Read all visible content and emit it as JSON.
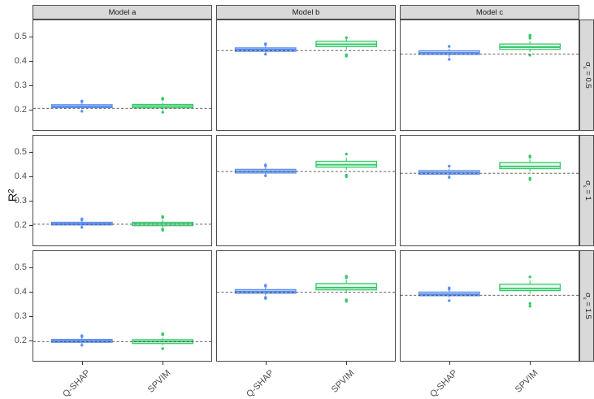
{
  "chart_data": {
    "type": "boxplot",
    "title": "",
    "ylabel": "R²",
    "xlabel": "",
    "y_ticks": [
      0.2,
      0.3,
      0.4,
      0.5
    ],
    "y_domain": [
      0.117,
      0.567
    ],
    "grid": "off",
    "legend": "none",
    "x_categories": [
      "Q-SHAP",
      "SPVIM"
    ],
    "col_facets": [
      "Model a",
      "Model b",
      "Model c"
    ],
    "row_facets": [
      {
        "symbol": "σ",
        "subscript": "ε",
        "rest": " = 0.5"
      },
      {
        "symbol": "σ",
        "subscript": "ε",
        "rest": " = 1"
      },
      {
        "symbol": "σ",
        "subscript": "ε",
        "rest": " = 1.5"
      }
    ],
    "series_colors": {
      "Q-SHAP": {
        "stroke": "#5b8ff0",
        "fill": "#c3daf9"
      },
      "SPVIM": {
        "stroke": "#35c968",
        "fill": "#e9f9ef"
      }
    },
    "dashed_line_color": "#4a4a4a",
    "panel_border_color": "#4d4d4d",
    "strip_bg_color": "#d9d9d9",
    "panels": [
      {
        "row": 0,
        "col": 0,
        "dashed": 0.206,
        "boxes": [
          {
            "method": "Q-SHAP",
            "whisker_low": 0.202,
            "q1": 0.209,
            "median": 0.214,
            "q3": 0.221,
            "whisker_high": 0.227,
            "outliers": [
              0.236,
              0.233,
              0.194
            ]
          },
          {
            "method": "SPVIM",
            "whisker_low": 0.199,
            "q1": 0.208,
            "median": 0.215,
            "q3": 0.222,
            "whisker_high": 0.229,
            "outliers": [
              0.247,
              0.243,
              0.19
            ]
          }
        ]
      },
      {
        "row": 0,
        "col": 1,
        "dashed": 0.443,
        "boxes": [
          {
            "method": "Q-SHAP",
            "whisker_low": 0.433,
            "q1": 0.44,
            "median": 0.447,
            "q3": 0.454,
            "whisker_high": 0.461,
            "outliers": [
              0.471,
              0.467,
              0.428
            ]
          },
          {
            "method": "SPVIM",
            "whisker_low": 0.447,
            "q1": 0.459,
            "median": 0.469,
            "q3": 0.481,
            "whisker_high": 0.491,
            "outliers": [
              0.496,
              0.426,
              0.42
            ]
          }
        ]
      },
      {
        "row": 0,
        "col": 2,
        "dashed": 0.428,
        "boxes": [
          {
            "method": "Q-SHAP",
            "whisker_low": 0.417,
            "q1": 0.427,
            "median": 0.434,
            "q3": 0.442,
            "whisker_high": 0.451,
            "outliers": [
              0.46,
              0.407
            ]
          },
          {
            "method": "SPVIM",
            "whisker_low": 0.437,
            "q1": 0.448,
            "median": 0.457,
            "q3": 0.47,
            "whisker_high": 0.481,
            "outliers": [
              0.506,
              0.5,
              0.494,
              0.424
            ]
          }
        ]
      },
      {
        "row": 1,
        "col": 0,
        "dashed": 0.204,
        "boxes": [
          {
            "method": "Q-SHAP",
            "whisker_low": 0.195,
            "q1": 0.201,
            "median": 0.206,
            "q3": 0.212,
            "whisker_high": 0.218,
            "outliers": [
              0.226,
              0.222,
              0.191
            ]
          },
          {
            "method": "SPVIM",
            "whisker_low": 0.19,
            "q1": 0.198,
            "median": 0.205,
            "q3": 0.212,
            "whisker_high": 0.22,
            "outliers": [
              0.235,
              0.231,
              0.184,
              0.179
            ]
          }
        ]
      },
      {
        "row": 1,
        "col": 1,
        "dashed": 0.42,
        "boxes": [
          {
            "method": "Q-SHAP",
            "whisker_low": 0.407,
            "q1": 0.414,
            "median": 0.421,
            "q3": 0.429,
            "whisker_high": 0.437,
            "outliers": [
              0.447,
              0.443,
              0.403
            ]
          },
          {
            "method": "SPVIM",
            "whisker_low": 0.426,
            "q1": 0.438,
            "median": 0.448,
            "q3": 0.462,
            "whisker_high": 0.476,
            "outliers": [
              0.492,
              0.405,
              0.399
            ]
          }
        ]
      },
      {
        "row": 1,
        "col": 2,
        "dashed": 0.413,
        "boxes": [
          {
            "method": "Q-SHAP",
            "whisker_low": 0.401,
            "q1": 0.409,
            "median": 0.416,
            "q3": 0.424,
            "whisker_high": 0.432,
            "outliers": [
              0.442,
              0.396
            ]
          },
          {
            "method": "SPVIM",
            "whisker_low": 0.42,
            "q1": 0.432,
            "median": 0.441,
            "q3": 0.457,
            "whisker_high": 0.47,
            "outliers": [
              0.484,
              0.479,
              0.392,
              0.387
            ]
          }
        ]
      },
      {
        "row": 2,
        "col": 0,
        "dashed": 0.196,
        "boxes": [
          {
            "method": "Q-SHAP",
            "whisker_low": 0.187,
            "q1": 0.193,
            "median": 0.199,
            "q3": 0.205,
            "whisker_high": 0.211,
            "outliers": [
              0.22,
              0.216,
              0.181
            ]
          },
          {
            "method": "SPVIM",
            "whisker_low": 0.181,
            "q1": 0.188,
            "median": 0.196,
            "q3": 0.204,
            "whisker_high": 0.212,
            "outliers": [
              0.228,
              0.224,
              0.167
            ]
          }
        ]
      },
      {
        "row": 2,
        "col": 1,
        "dashed": 0.398,
        "boxes": [
          {
            "method": "Q-SHAP",
            "whisker_low": 0.386,
            "q1": 0.394,
            "median": 0.401,
            "q3": 0.409,
            "whisker_high": 0.417,
            "outliers": [
              0.427,
              0.423,
              0.377,
              0.373
            ]
          },
          {
            "method": "SPVIM",
            "whisker_low": 0.395,
            "q1": 0.408,
            "median": 0.417,
            "q3": 0.434,
            "whisker_high": 0.449,
            "outliers": [
              0.464,
              0.458,
              0.367,
              0.361
            ]
          }
        ]
      },
      {
        "row": 2,
        "col": 2,
        "dashed": 0.386,
        "boxes": [
          {
            "method": "Q-SHAP",
            "whisker_low": 0.376,
            "q1": 0.384,
            "median": 0.39,
            "q3": 0.399,
            "whisker_high": 0.407,
            "outliers": [
              0.416,
              0.411,
              0.364
            ]
          },
          {
            "method": "SPVIM",
            "whisker_low": 0.392,
            "q1": 0.405,
            "median": 0.413,
            "q3": 0.431,
            "whisker_high": 0.446,
            "outliers": [
              0.461,
              0.352,
              0.341
            ]
          }
        ]
      }
    ]
  }
}
